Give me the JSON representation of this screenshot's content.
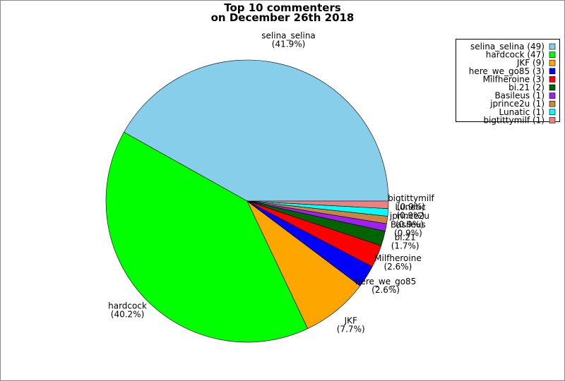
{
  "chart_data": {
    "type": "pie",
    "title": "Top 10 commenters",
    "subtitle": "on December 26th 2018",
    "categories": [
      "selina_selina",
      "hardcock",
      "JKF",
      "here_we_go85",
      "Milfheroine",
      "bi.21",
      "Basileus",
      "jprince2u",
      "Lunatic",
      "bigtittymilf"
    ],
    "values": [
      49,
      47,
      9,
      3,
      3,
      2,
      1,
      1,
      1,
      1
    ],
    "legend_labels": [
      "selina_selina (49)",
      "hardcock (47)",
      "JKF (9)",
      "here_we_go85 (3)",
      "Milfheroine (3)",
      "bi.21 (2)",
      "Basileus (1)",
      "jprince2u (1)",
      "Lunatic (1)",
      "bigtittymilf (1)"
    ],
    "percents": [
      41.9,
      40.2,
      7.7,
      2.6,
      2.6,
      1.7,
      0.9,
      0.9,
      0.9,
      0.9
    ],
    "percent_labels": [
      "(41.9%)",
      "(40.2%)",
      "(7.7%)",
      "(2.6%)",
      "(2.6%)",
      "(1.7%)",
      "(0.9%)",
      "(0.9%)",
      "(0.9%)",
      "(0.9%)"
    ],
    "colors": [
      "#87ceeb",
      "#00ff00",
      "#ffa500",
      "#0000ff",
      "#ff0000",
      "#006400",
      "#a020f0",
      "#cd853f",
      "#00ffff",
      "#f08080"
    ]
  }
}
